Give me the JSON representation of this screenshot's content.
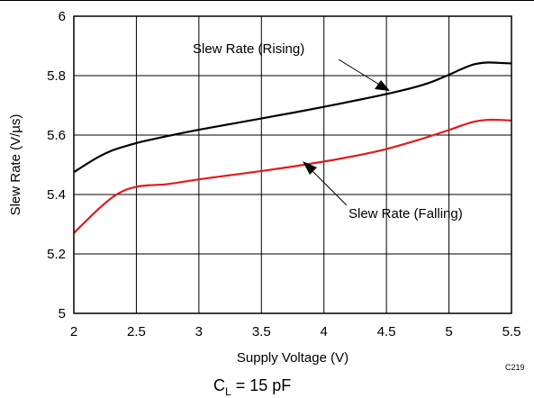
{
  "chart_data": {
    "type": "line",
    "xlabel": "Supply Voltage (V)",
    "ylabel": "Slew Rate (V/µs)",
    "xlim": [
      2,
      5.5
    ],
    "ylim": [
      5,
      6
    ],
    "xticks": [
      "2",
      "2.5",
      "3",
      "3.5",
      "4",
      "4.5",
      "5",
      "5.5"
    ],
    "yticks": [
      "5",
      "5.2",
      "5.4",
      "5.6",
      "5.8",
      "6"
    ],
    "grid": true,
    "series": [
      {
        "name": "Slew Rate (Rising)",
        "color": "#000000",
        "x": [
          2.0,
          2.1,
          2.2,
          2.3,
          2.4,
          2.5,
          2.6,
          2.8,
          3.0,
          3.25,
          3.5,
          3.75,
          4.0,
          4.25,
          4.5,
          4.7,
          4.85,
          5.0,
          5.1,
          5.2,
          5.3,
          5.4,
          5.5
        ],
        "y": [
          5.475,
          5.502,
          5.527,
          5.547,
          5.561,
          5.573,
          5.583,
          5.601,
          5.618,
          5.637,
          5.656,
          5.675,
          5.695,
          5.716,
          5.738,
          5.758,
          5.777,
          5.803,
          5.822,
          5.838,
          5.844,
          5.843,
          5.841
        ]
      },
      {
        "name": "Slew Rate (Falling)",
        "color": "#e31a1c",
        "x": [
          2.0,
          2.1,
          2.2,
          2.3,
          2.4,
          2.5,
          2.6,
          2.75,
          3.0,
          3.25,
          3.5,
          3.75,
          4.0,
          4.25,
          4.5,
          4.75,
          5.0,
          5.1,
          5.2,
          5.3,
          5.4,
          5.5
        ],
        "y": [
          5.27,
          5.312,
          5.352,
          5.388,
          5.413,
          5.426,
          5.431,
          5.435,
          5.451,
          5.465,
          5.479,
          5.494,
          5.511,
          5.53,
          5.553,
          5.583,
          5.617,
          5.632,
          5.645,
          5.651,
          5.651,
          5.649
        ]
      }
    ],
    "annotations": [
      "Slew Rate (Rising)",
      "Slew Rate (Falling)"
    ],
    "code": "C219",
    "condition": {
      "main": "C",
      "sub": "L",
      "rest": " = 15 pF"
    }
  }
}
